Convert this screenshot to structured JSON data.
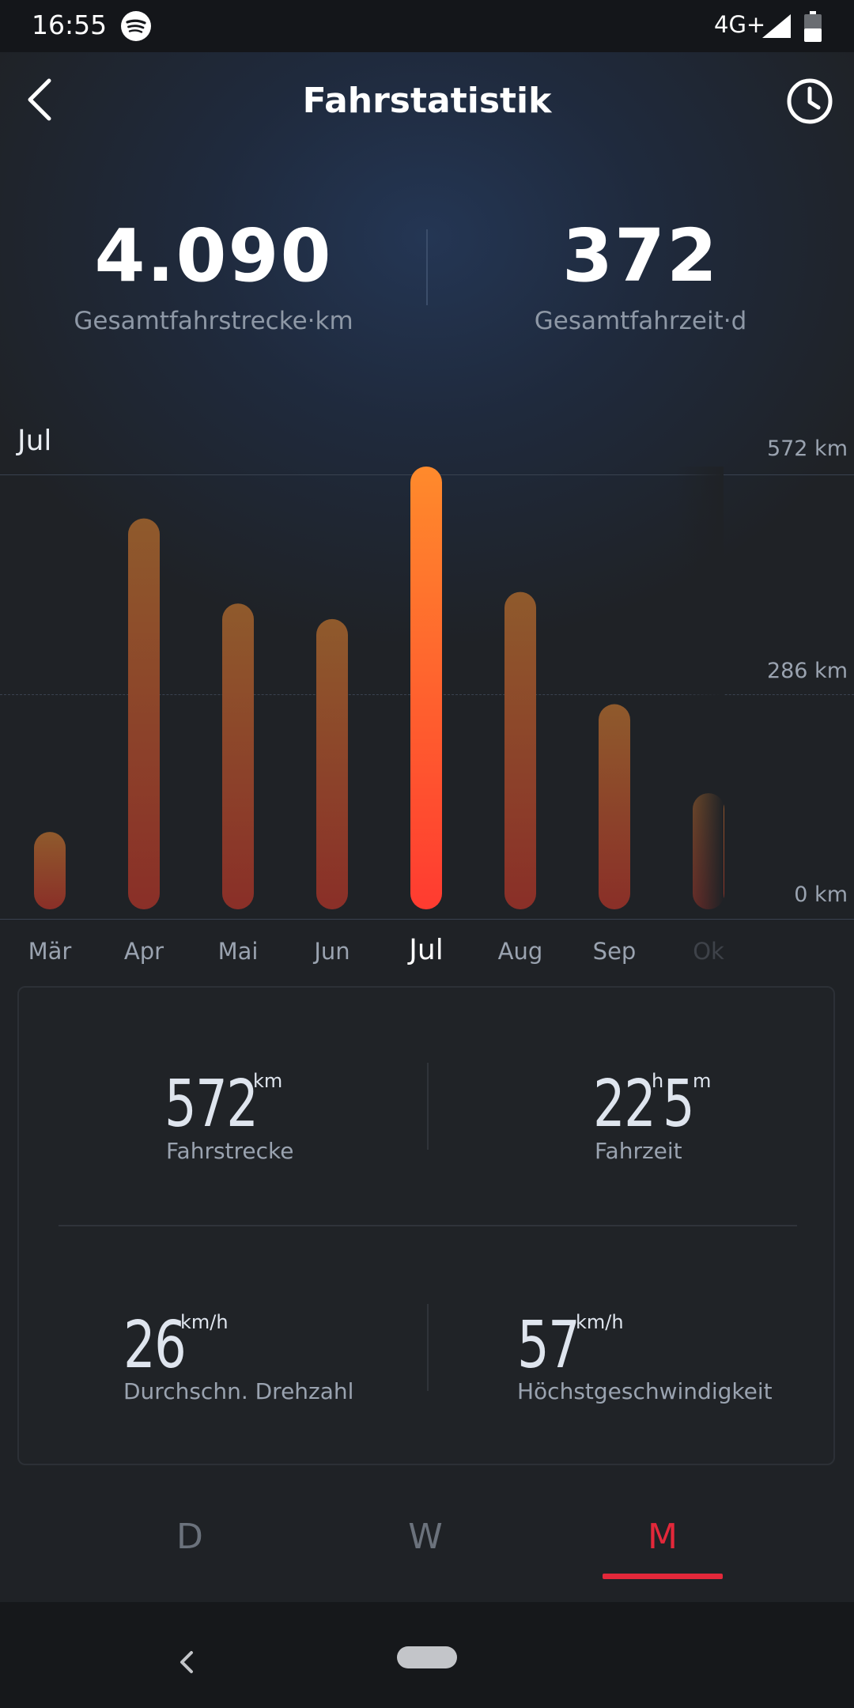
{
  "status_bar": {
    "time": "16:55",
    "network": "4G+"
  },
  "header": {
    "title": "Fahrstatistik"
  },
  "summary": [
    {
      "value": "4.090",
      "label": "Gesamtfahrstrecke·km"
    },
    {
      "value": "372",
      "label": "Gesamtfahrzeit·d"
    }
  ],
  "chart_data": {
    "type": "bar",
    "selected_category": "Jul",
    "categories": [
      "Mär",
      "Apr",
      "Mai",
      "Jun",
      "Jul",
      "Aug",
      "Sep",
      "Ok"
    ],
    "values": [
      100,
      505,
      395,
      375,
      572,
      410,
      265,
      150
    ],
    "y_ticks": [
      "572 km",
      "286 km",
      "0 km"
    ],
    "ylim": [
      0,
      572
    ]
  },
  "details": {
    "distance": {
      "value": "572",
      "unit": "km",
      "label": "Fahrstrecke"
    },
    "time": {
      "hours": "22",
      "hours_unit": "h",
      "minutes": "5",
      "minutes_unit": "m",
      "label": "Fahrzeit"
    },
    "avg": {
      "value": "26",
      "unit": "km/h",
      "label": "Durchschn. Drehzahl"
    },
    "max": {
      "value": "57",
      "unit": "km/h",
      "label": "Höchstgeschwindigkeit"
    }
  },
  "tabs": [
    {
      "label": "D",
      "active": false
    },
    {
      "label": "W",
      "active": false
    },
    {
      "label": "M",
      "active": true
    }
  ],
  "colors": {
    "accent": "#e3283a",
    "bar_active_top": "#ff8a2c",
    "bar_active_bottom": "#ff3b30",
    "bar_top": "#8f5a2c",
    "bar_bottom": "#8a2f28"
  }
}
